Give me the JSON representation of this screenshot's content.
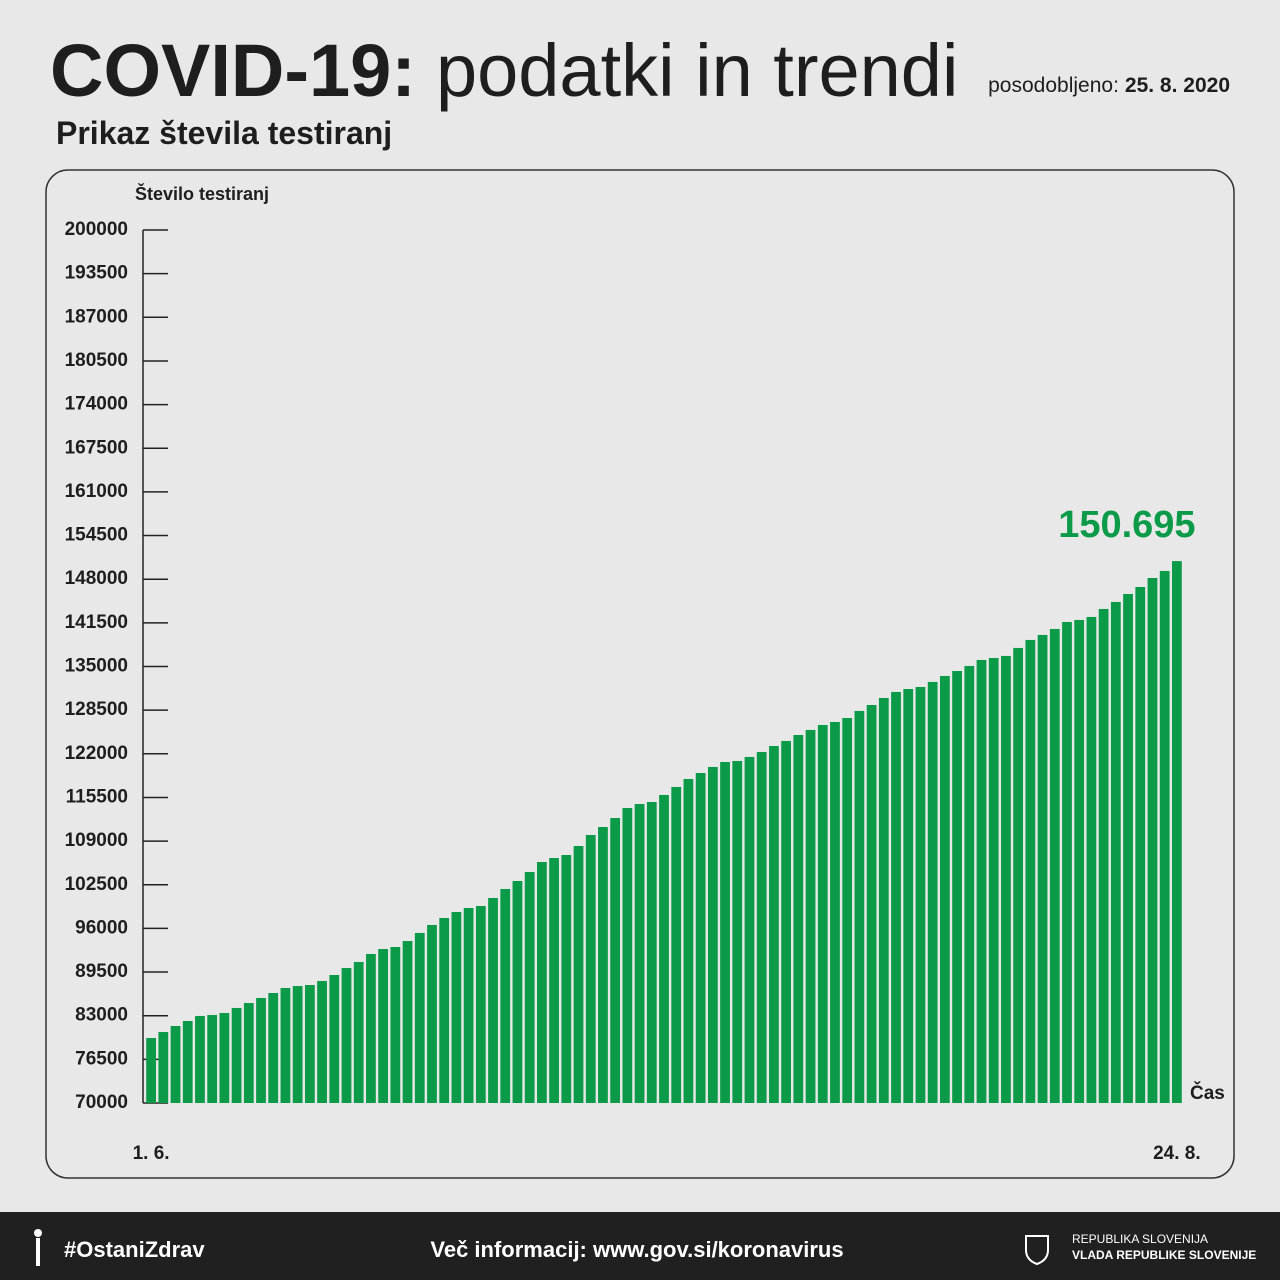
{
  "header": {
    "title_bold": "COVID-19:",
    "title_regular": "podatki in trendi",
    "updated_label": "posodobljeno:",
    "updated_date": "25. 8. 2020"
  },
  "footer": {
    "hashtag": "#OstaniZdrav",
    "info": "Več informacij: www.gov.si/koronavirus",
    "org_line1": "REPUBLIKA SLOVENIJA",
    "org_line2": "VLADA REPUBLIKE SLOVENIJE"
  },
  "chart_data": {
    "type": "bar",
    "title": "Prikaz števila testiranj",
    "y_label": "Število testiranj",
    "x_label": "Čas",
    "color": "#0a9a48",
    "categories": [
      "1. 6.",
      null,
      null,
      null,
      null,
      null,
      null,
      null,
      null,
      null,
      null,
      null,
      null,
      null,
      null,
      null,
      null,
      null,
      null,
      null,
      null,
      null,
      null,
      null,
      null,
      null,
      null,
      null,
      null,
      null,
      null,
      null,
      null,
      null,
      null,
      null,
      null,
      null,
      null,
      null,
      null,
      null,
      null,
      null,
      null,
      null,
      null,
      null,
      null,
      null,
      null,
      null,
      null,
      null,
      null,
      null,
      null,
      null,
      null,
      null,
      null,
      null,
      null,
      null,
      null,
      null,
      null,
      null,
      null,
      null,
      null,
      null,
      null,
      null,
      null,
      null,
      null,
      null,
      null,
      null,
      null,
      null,
      null,
      null,
      "24. 8."
    ],
    "values": [
      79680,
      80570,
      81470,
      82210,
      82960,
      83100,
      83400,
      84150,
      84890,
      85640,
      86380,
      87130,
      87420,
      87570,
      88170,
      89060,
      90100,
      91000,
      92190,
      92930,
      93230,
      94120,
      95320,
      96510,
      97550,
      98440,
      99040,
      99340,
      100530,
      101870,
      103060,
      104400,
      105890,
      106480,
      106930,
      108270,
      109910,
      111100,
      112440,
      113930,
      114520,
      114820,
      115870,
      117060,
      118250,
      119140,
      120040,
      120780,
      120930,
      121530,
      122270,
      123160,
      123910,
      124800,
      125550,
      126290,
      126740,
      127330,
      128380,
      129270,
      130310,
      131210,
      131650,
      131950,
      132700,
      133590,
      134330,
      135080,
      135970,
      136270,
      136570,
      137760,
      138950,
      139700,
      140590,
      141630,
      141930,
      142380,
      143570,
      144610,
      145800,
      146840,
      148180,
      149230,
      150695
    ],
    "value_labels": [
      null,
      null,
      null,
      null,
      null,
      null,
      null,
      null,
      null,
      null,
      null,
      null,
      null,
      null,
      null,
      null,
      null,
      null,
      null,
      null,
      null,
      null,
      null,
      null,
      null,
      null,
      null,
      null,
      null,
      null,
      null,
      null,
      null,
      null,
      null,
      null,
      null,
      null,
      null,
      null,
      null,
      null,
      null,
      null,
      null,
      null,
      null,
      null,
      null,
      null,
      null,
      null,
      null,
      null,
      null,
      null,
      null,
      null,
      null,
      null,
      null,
      null,
      null,
      null,
      null,
      null,
      null,
      null,
      null,
      null,
      null,
      null,
      null,
      null,
      null,
      null,
      null,
      null,
      null,
      null,
      null,
      null,
      null,
      null,
      "150.695"
    ],
    "ylim": [
      70000,
      200000
    ],
    "yticks": [
      70000,
      76500,
      83000,
      89500,
      96000,
      102500,
      109000,
      115500,
      122000,
      128500,
      135000,
      141500,
      148000,
      154500,
      161000,
      167500,
      174000,
      180500,
      187000,
      193500,
      200000
    ]
  }
}
